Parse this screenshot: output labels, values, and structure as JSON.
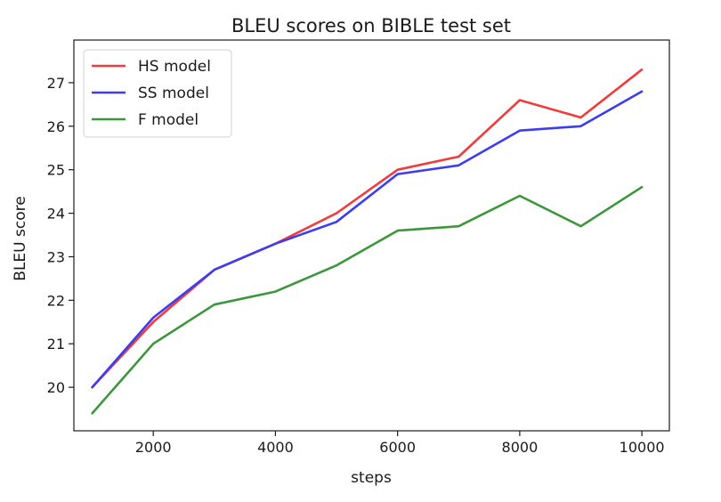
{
  "chart_data": {
    "type": "line",
    "title": "BLEU scores on BIBLE test set",
    "xlabel": "steps",
    "ylabel": "BLEU score",
    "x": [
      1000,
      2000,
      3000,
      4000,
      5000,
      6000,
      7000,
      8000,
      9000,
      10000
    ],
    "xlim": [
      700,
      10450
    ],
    "ylim": [
      19.0,
      27.98
    ],
    "xticks": [
      2000,
      4000,
      6000,
      8000,
      10000
    ],
    "yticks": [
      20,
      21,
      22,
      23,
      24,
      25,
      26,
      27
    ],
    "grid": false,
    "legend_position": "upper left",
    "series": [
      {
        "name": "HS model",
        "color": "#f03c3c",
        "values": [
          20.0,
          21.5,
          22.7,
          23.3,
          24.0,
          25.0,
          25.3,
          26.6,
          26.2,
          27.3
        ]
      },
      {
        "name": "SS model",
        "color": "#3c3cf0",
        "values": [
          20.0,
          21.6,
          22.7,
          23.3,
          23.8,
          24.9,
          25.1,
          25.9,
          26.0,
          26.8
        ]
      },
      {
        "name": "F model",
        "color": "#3c963c",
        "values": [
          19.4,
          21.0,
          21.9,
          22.2,
          22.8,
          23.6,
          23.7,
          24.4,
          23.7,
          24.6
        ]
      }
    ]
  }
}
